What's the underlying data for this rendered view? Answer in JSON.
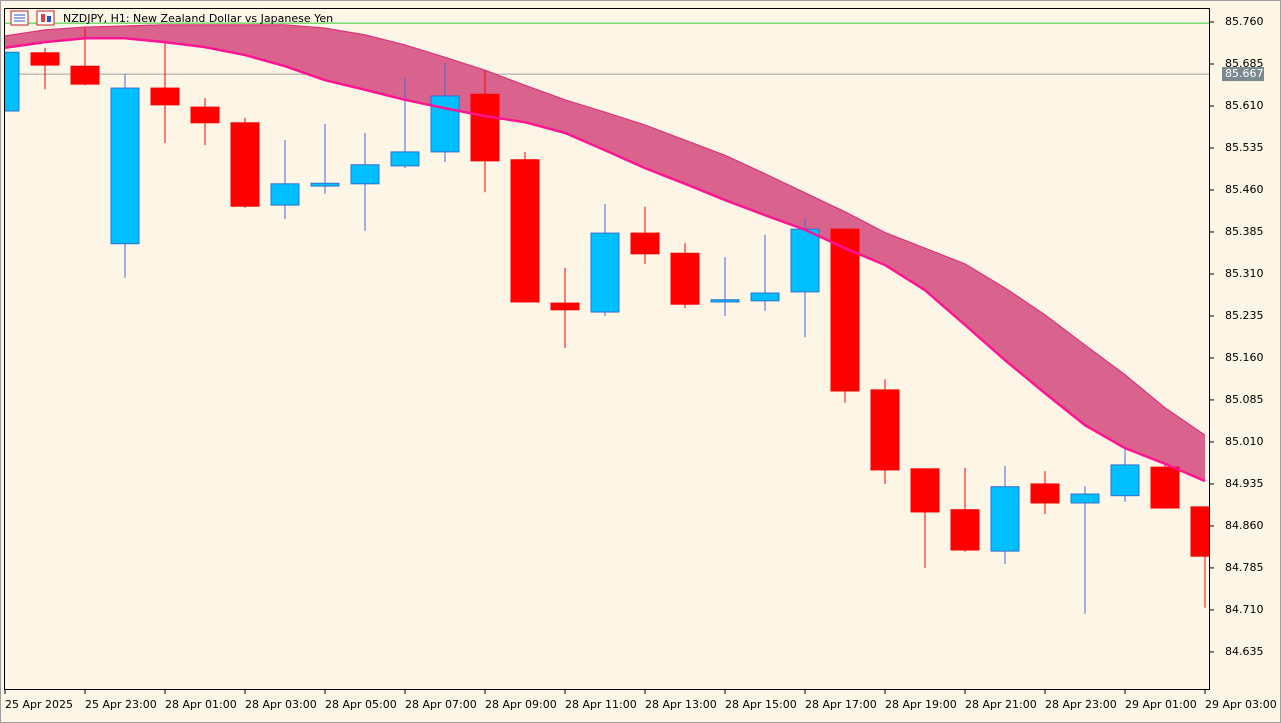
{
  "chart_data": {
    "type": "candlestick",
    "title": "NZDJPY, H1:  New Zealand Dollar vs Japanese Yen",
    "categories": [
      "25 Apr 2025",
      null,
      "25 Apr 23:00",
      null,
      "28 Apr 01:00",
      null,
      "28 Apr 03:00",
      null,
      "28 Apr 05:00",
      null,
      "28 Apr 07:00",
      null,
      "28 Apr 09:00",
      null,
      "28 Apr 11:00",
      null,
      "28 Apr 13:00",
      null,
      "28 Apr 15:00",
      null,
      "28 Apr 17:00",
      null,
      "28 Apr 19:00",
      null,
      "28 Apr 21:00",
      null,
      "28 Apr 23:00",
      null,
      "29 Apr 01:00",
      null,
      "29 Apr 03:00"
    ],
    "open": [
      85.601,
      85.705,
      85.681,
      85.364,
      85.642,
      85.608,
      85.58,
      85.433,
      85.467,
      85.471,
      85.503,
      85.528,
      85.631,
      85.514,
      85.258,
      85.242,
      85.383,
      85.347,
      85.26,
      85.262,
      85.278,
      85.39,
      85.103,
      84.962,
      84.889,
      84.815,
      84.935,
      84.901,
      84.914,
      84.965,
      84.894
    ],
    "high": [
      85.706,
      85.714,
      85.749,
      85.667,
      85.724,
      85.624,
      85.589,
      85.549,
      85.578,
      85.562,
      85.66,
      85.687,
      85.674,
      85.528,
      85.321,
      85.435,
      85.43,
      85.365,
      85.34,
      85.38,
      85.41,
      85.39,
      85.122,
      84.962,
      84.964,
      84.967,
      84.958,
      84.931,
      85.0,
      84.972,
      84.894
    ],
    "low": [
      85.601,
      85.64,
      85.647,
      85.303,
      85.544,
      85.54,
      85.428,
      85.408,
      85.453,
      85.387,
      85.499,
      85.51,
      85.456,
      85.26,
      85.178,
      85.235,
      85.328,
      85.249,
      85.235,
      85.244,
      85.197,
      85.08,
      84.935,
      84.785,
      84.814,
      84.792,
      84.881,
      84.703,
      84.903,
      84.892,
      84.714
    ],
    "close": [
      85.706,
      85.683,
      85.649,
      85.642,
      85.612,
      85.58,
      85.431,
      85.471,
      85.472,
      85.505,
      85.528,
      85.628,
      85.512,
      85.26,
      85.246,
      85.383,
      85.346,
      85.256,
      85.264,
      85.276,
      85.39,
      85.101,
      84.96,
      84.885,
      84.817,
      84.93,
      84.901,
      84.917,
      84.969,
      84.892,
      84.806
    ],
    "up_color": "#00bfff",
    "down_color": "#ff0000",
    "bands": [
      {
        "color": "#e0307a",
        "values": [
          85.735,
          85.746,
          85.751,
          85.753,
          85.755,
          85.755,
          85.755,
          85.755,
          85.749,
          85.737,
          85.719,
          85.697,
          85.674,
          85.647,
          85.621,
          85.599,
          85.576,
          85.549,
          85.522,
          85.489,
          85.455,
          85.421,
          85.384,
          85.356,
          85.328,
          85.285,
          85.237,
          85.183,
          85.13,
          85.071,
          85.022
        ]
      },
      {
        "color": "#ff1493",
        "values": [
          85.714,
          85.724,
          85.731,
          85.731,
          85.724,
          85.715,
          85.701,
          85.681,
          85.656,
          85.639,
          85.621,
          85.606,
          85.592,
          85.581,
          85.562,
          85.531,
          85.499,
          85.471,
          85.442,
          85.415,
          85.389,
          85.356,
          85.326,
          85.281,
          85.219,
          85.156,
          85.097,
          85.04,
          84.999,
          84.971,
          84.94
        ]
      }
    ],
    "band_fill": "#d9638c",
    "high_line": {
      "value": 85.758,
      "color": "#33cc33"
    },
    "bid_line": {
      "value": 85.667,
      "label": "85.667",
      "color": "#a0a0a0"
    },
    "ylim": [
      84.567,
      85.785
    ],
    "yticks": [
      {
        "value": 85.76,
        "label": "85.760"
      },
      85.685,
      {
        "value": 85.61,
        "label": "85.610"
      },
      85.535,
      {
        "value": 85.46,
        "label": "85.460"
      },
      85.385,
      {
        "value": 85.31,
        "label": "85.310"
      },
      85.235,
      {
        "value": 85.16,
        "label": "85.160"
      },
      85.085,
      {
        "value": 85.01,
        "label": "85.010"
      },
      84.935,
      {
        "value": 84.86,
        "label": "84.860"
      },
      84.785,
      {
        "value": 84.71,
        "label": "84.710"
      },
      84.635
    ]
  }
}
